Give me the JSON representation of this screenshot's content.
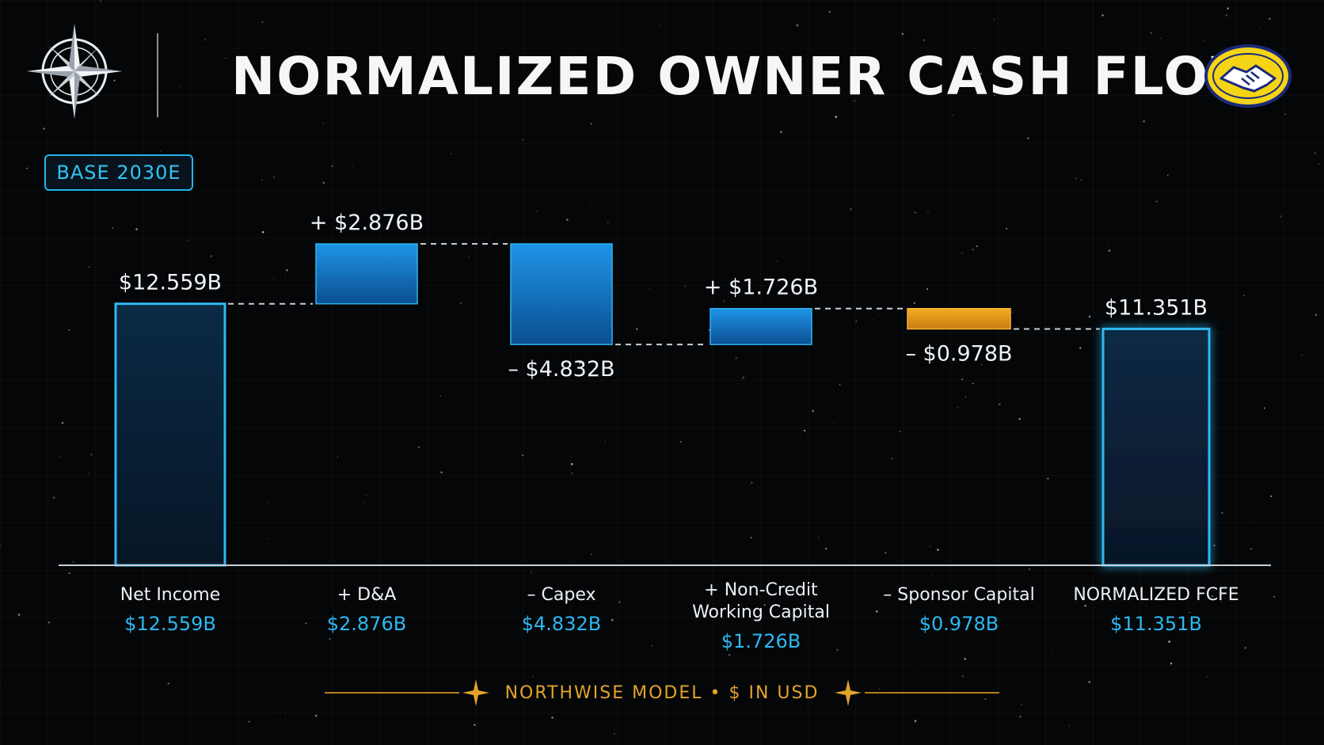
{
  "header": {
    "title": "NORMALIZED OWNER CASH FLOW",
    "badge": "BASE 2030E"
  },
  "icons": {
    "left_logo": "compass-rose-icon",
    "right_logo": "handshake-icon"
  },
  "colors": {
    "accent_blue": "#25b6ea",
    "increase_fill": "#1e8fe0",
    "decrease_fill": "#1a78c8",
    "sponsor_fill": "#f0a21c",
    "footer_gold": "#e3a32a"
  },
  "footer": {
    "text": "NORTHWISE MODEL • $ IN USD"
  },
  "chart_data": {
    "type": "bar",
    "subtype": "waterfall",
    "title": "NORMALIZED OWNER CASH FLOW",
    "currency": "USD",
    "unit": "B",
    "steps": [
      {
        "label": "Net Income",
        "category_value": "$12.559B",
        "value": 12.559,
        "kind": "total",
        "data_label": "$12.559B"
      },
      {
        "label": "+ D&A",
        "category_value": "$2.876B",
        "value": 2.876,
        "kind": "increase",
        "data_label": "+ $2.876B"
      },
      {
        "label": "– Capex",
        "category_value": "$4.832B",
        "value": -4.832,
        "kind": "decrease",
        "data_label": "– $4.832B"
      },
      {
        "label": "+ Non-Credit Working Capital",
        "label_lines": [
          "+ Non-Credit",
          "Working Capital"
        ],
        "category_value": "$1.726B",
        "value": 1.726,
        "kind": "increase",
        "data_label": "+ $1.726B"
      },
      {
        "label": "– Sponsor Capital",
        "category_value": "$0.978B",
        "value": -0.978,
        "kind": "decrease_highlight",
        "data_label": "– $0.978B"
      },
      {
        "label": "NORMALIZED FCFE",
        "category_value": "$11.351B",
        "value": 11.351,
        "kind": "total",
        "data_label": "$11.351B"
      }
    ],
    "ylim": [
      0,
      18
    ],
    "grid": false,
    "legend": "none"
  }
}
